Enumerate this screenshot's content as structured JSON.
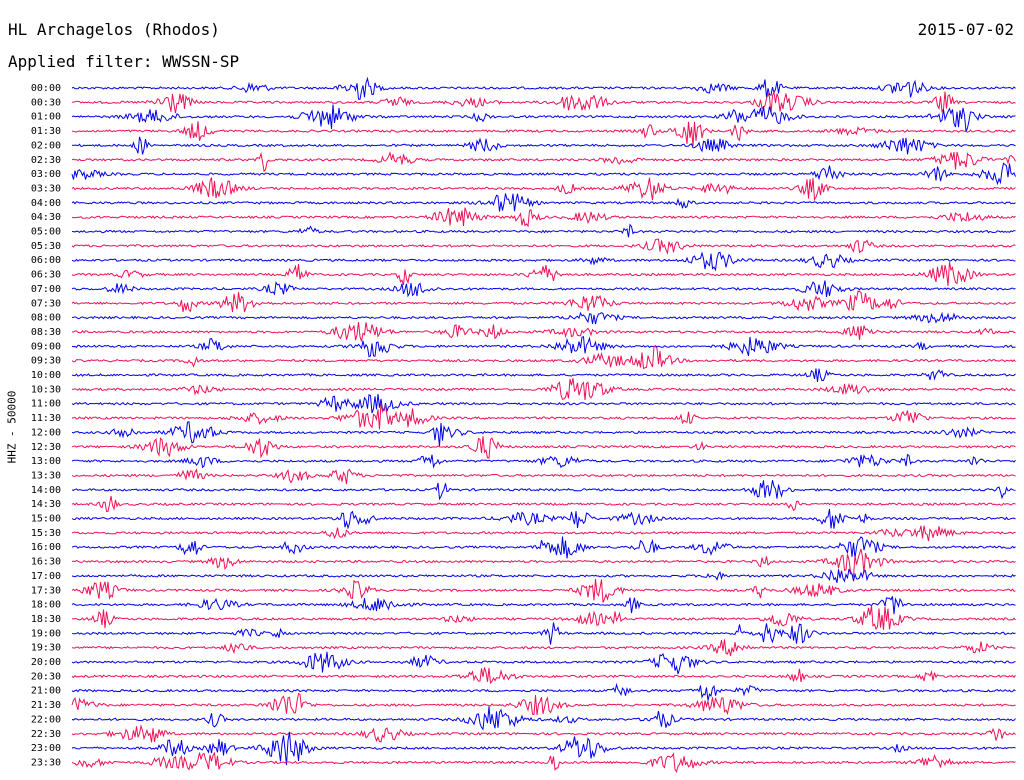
{
  "header": {
    "station": "HL Archagelos (Rhodos)",
    "date": "2015-07-02",
    "filter": "Applied filter: WWSSN-SP"
  },
  "chart_data": {
    "type": "line",
    "title": "HL Archagelos (Rhodos)",
    "ylabel": "HHZ - 50000",
    "colors": [
      "#0000ee",
      "#ee1155"
    ],
    "rows": [
      "00:00",
      "00:30",
      "01:00",
      "01:30",
      "02:00",
      "02:30",
      "03:00",
      "03:30",
      "04:00",
      "04:30",
      "05:00",
      "05:30",
      "06:00",
      "06:30",
      "07:00",
      "07:30",
      "08:00",
      "08:30",
      "09:00",
      "09:30",
      "10:00",
      "10:30",
      "11:00",
      "11:30",
      "12:00",
      "12:30",
      "13:00",
      "13:30",
      "14:00",
      "14:30",
      "15:00",
      "15:30",
      "16:00",
      "16:30",
      "17:00",
      "17:30",
      "18:00",
      "18:30",
      "19:00",
      "19:30",
      "20:00",
      "20:30",
      "21:00",
      "21:30",
      "22:00",
      "22:30",
      "23:00",
      "23:30"
    ]
  }
}
